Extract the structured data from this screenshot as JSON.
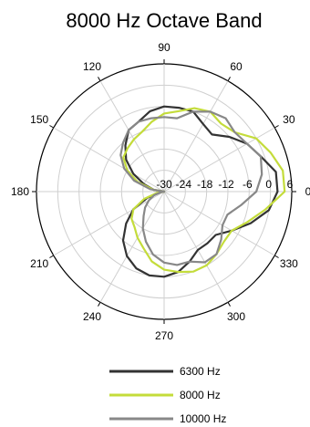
{
  "chart_data": {
    "type": "polar-line",
    "title": "8000 Hz Octave Band",
    "angle_unit": "degrees",
    "angle_ticks": [
      0,
      30,
      60,
      90,
      120,
      150,
      180,
      210,
      240,
      270,
      300,
      330
    ],
    "angle_tick_labels": [
      "0",
      "30",
      "60",
      "90",
      "120",
      "150",
      "180",
      "210",
      "240",
      "270",
      "300",
      "330"
    ],
    "radial_range": [
      -30,
      6
    ],
    "radial_ticks": [
      -30,
      -24,
      -18,
      -12,
      -6,
      0,
      6
    ],
    "radial_tick_labels": [
      "-30",
      "-24",
      "-18",
      "-12",
      "-6",
      "0",
      "6"
    ],
    "grid": true,
    "legend_position": "bottom",
    "series": [
      {
        "name": "6300 Hz",
        "color": "#333333",
        "angles": [
          0,
          10,
          20,
          30,
          40,
          50,
          60,
          70,
          80,
          90,
          100,
          110,
          120,
          130,
          140,
          150,
          160,
          170,
          175,
          185,
          190,
          200,
          210,
          220,
          230,
          240,
          250,
          260,
          270,
          280,
          290,
          300,
          310,
          320,
          330,
          340,
          350
        ],
        "values": [
          2,
          2,
          -1,
          -3,
          -6,
          -9,
          -8,
          -6,
          -6,
          -6,
          -7,
          -9,
          -10,
          -13,
          -16,
          -20,
          -24,
          -27,
          -30,
          -30,
          -29,
          -25,
          -20,
          -16,
          -12,
          -9,
          -7,
          -6,
          -6,
          -7,
          -9,
          -11,
          -11,
          -11,
          -8,
          -4,
          0
        ]
      },
      {
        "name": "8000 Hz",
        "color": "#c4dc3b",
        "angles": [
          0,
          10,
          20,
          30,
          40,
          50,
          60,
          70,
          80,
          90,
          100,
          110,
          120,
          130,
          140,
          150,
          160,
          170,
          180,
          190,
          200,
          210,
          220,
          230,
          240,
          250,
          260,
          270,
          280,
          290,
          300,
          310,
          320,
          330,
          340,
          350
        ],
        "values": [
          4,
          4,
          2,
          0,
          -4,
          -5,
          -4,
          -5,
          -7,
          -8,
          -10,
          -12,
          -13,
          -14,
          -15,
          -18,
          -22,
          -27,
          -30,
          -28,
          -24,
          -20,
          -18,
          -17,
          -15,
          -13,
          -10,
          -8,
          -7,
          -6,
          -6,
          -7,
          -8,
          -8,
          -5,
          -1
        ]
      },
      {
        "name": "10000 Hz",
        "color": "#888888",
        "angles": [
          0,
          10,
          20,
          30,
          40,
          50,
          60,
          70,
          80,
          90,
          100,
          110,
          120,
          130,
          140,
          150,
          160,
          170,
          180,
          190,
          200,
          210,
          220,
          230,
          240,
          250,
          260,
          270,
          280,
          290,
          300,
          310,
          320,
          330,
          340,
          350
        ],
        "values": [
          -4,
          -2,
          -1,
          -3,
          -4,
          -3,
          -4,
          -6,
          -9,
          -9,
          -9,
          -9,
          -10,
          -12,
          -14,
          -17,
          -21,
          -26,
          -30,
          -29,
          -27,
          -25,
          -23,
          -21,
          -18,
          -15,
          -12,
          -10,
          -9,
          -9,
          -7,
          -7,
          -9,
          -11,
          -11,
          -8
        ]
      }
    ]
  }
}
